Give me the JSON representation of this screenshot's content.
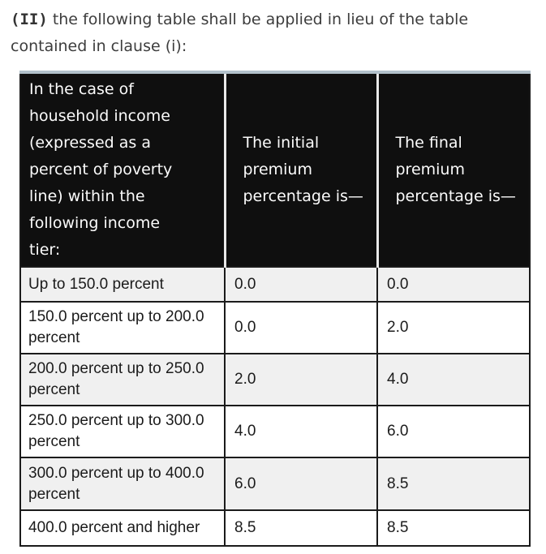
{
  "intro": {
    "marker": "(II)",
    "text": "the following table shall be applied in lieu of the table contained in clause (i):"
  },
  "table": {
    "headers": {
      "tier": "In the case of household income (expressed as a percent of poverty line) within the following income tier:",
      "initial": "The initial premium percentage is—",
      "final": "The final premium percentage is—"
    },
    "rows": [
      {
        "tier": "Up to 150.0 percent",
        "initial": "0.0",
        "final": "0.0"
      },
      {
        "tier": "150.0 percent up to 200.0 percent",
        "initial": "0.0",
        "final": "2.0"
      },
      {
        "tier": "200.0 percent up to 250.0 percent",
        "initial": "2.0",
        "final": "4.0"
      },
      {
        "tier": "250.0 percent up to 300.0 percent",
        "initial": "4.0",
        "final": "6.0"
      },
      {
        "tier": "300.0 percent up to 400.0 percent",
        "initial": "6.0",
        "final": "8.5"
      },
      {
        "tier": "400.0 percent and higher",
        "initial": "8.5",
        "final": "8.5"
      }
    ],
    "colors": {
      "header_bg": "#0f0f0f",
      "header_text": "#fbfbfb",
      "top_border": "#b2c1cb",
      "row_alt_bg": "#f0f0f0",
      "grid_border": "#1b1b1b"
    }
  }
}
